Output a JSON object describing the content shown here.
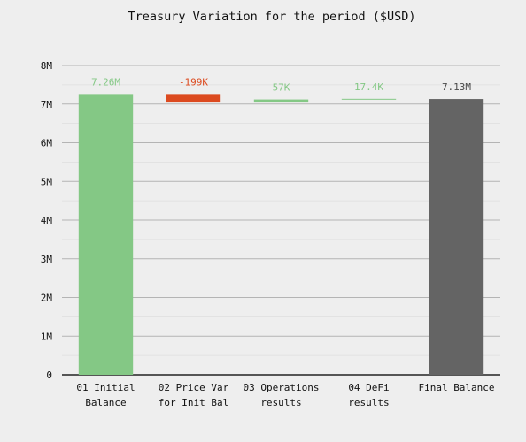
{
  "chart_data": {
    "type": "waterfall",
    "title": "Treasury Variation for the period ($USD)",
    "xlabel": "",
    "ylabel": "",
    "ylim": [
      0,
      8000000
    ],
    "yticks": [
      0,
      1000000,
      2000000,
      3000000,
      4000000,
      5000000,
      6000000,
      7000000,
      8000000
    ],
    "ytick_labels": [
      "0",
      "1M",
      "2M",
      "3M",
      "4M",
      "5M",
      "6M",
      "7M",
      "8M"
    ],
    "grid": true,
    "categories": [
      [
        "01 Initial",
        "Balance"
      ],
      [
        "02 Price Var",
        "for Init Bal"
      ],
      [
        "03 Operations",
        "results"
      ],
      [
        "04 DeFi",
        "results"
      ],
      [
        "Final Balance"
      ]
    ],
    "bars": [
      {
        "start": 0,
        "end": 7260000,
        "value": 7260000,
        "label": "7.26M",
        "kind": "total-start",
        "color": "#84c885"
      },
      {
        "start": 7260000,
        "end": 7061000,
        "value": -199000,
        "label": "-199K",
        "kind": "decrease",
        "color": "#dc4a1f"
      },
      {
        "start": 7061000,
        "end": 7118000,
        "value": 57000,
        "label": "57K",
        "kind": "increase",
        "color": "#84c885"
      },
      {
        "start": 7118000,
        "end": 7135400,
        "value": 17400,
        "label": "17.4K",
        "kind": "increase",
        "color": "#84c885"
      },
      {
        "start": 0,
        "end": 7130000,
        "value": 7130000,
        "label": "7.13M",
        "kind": "total-end",
        "color": "#646464"
      }
    ],
    "label_colors": [
      "#84c885",
      "#dc4a1f",
      "#84c885",
      "#84c885",
      "#4a4a4a"
    ]
  }
}
